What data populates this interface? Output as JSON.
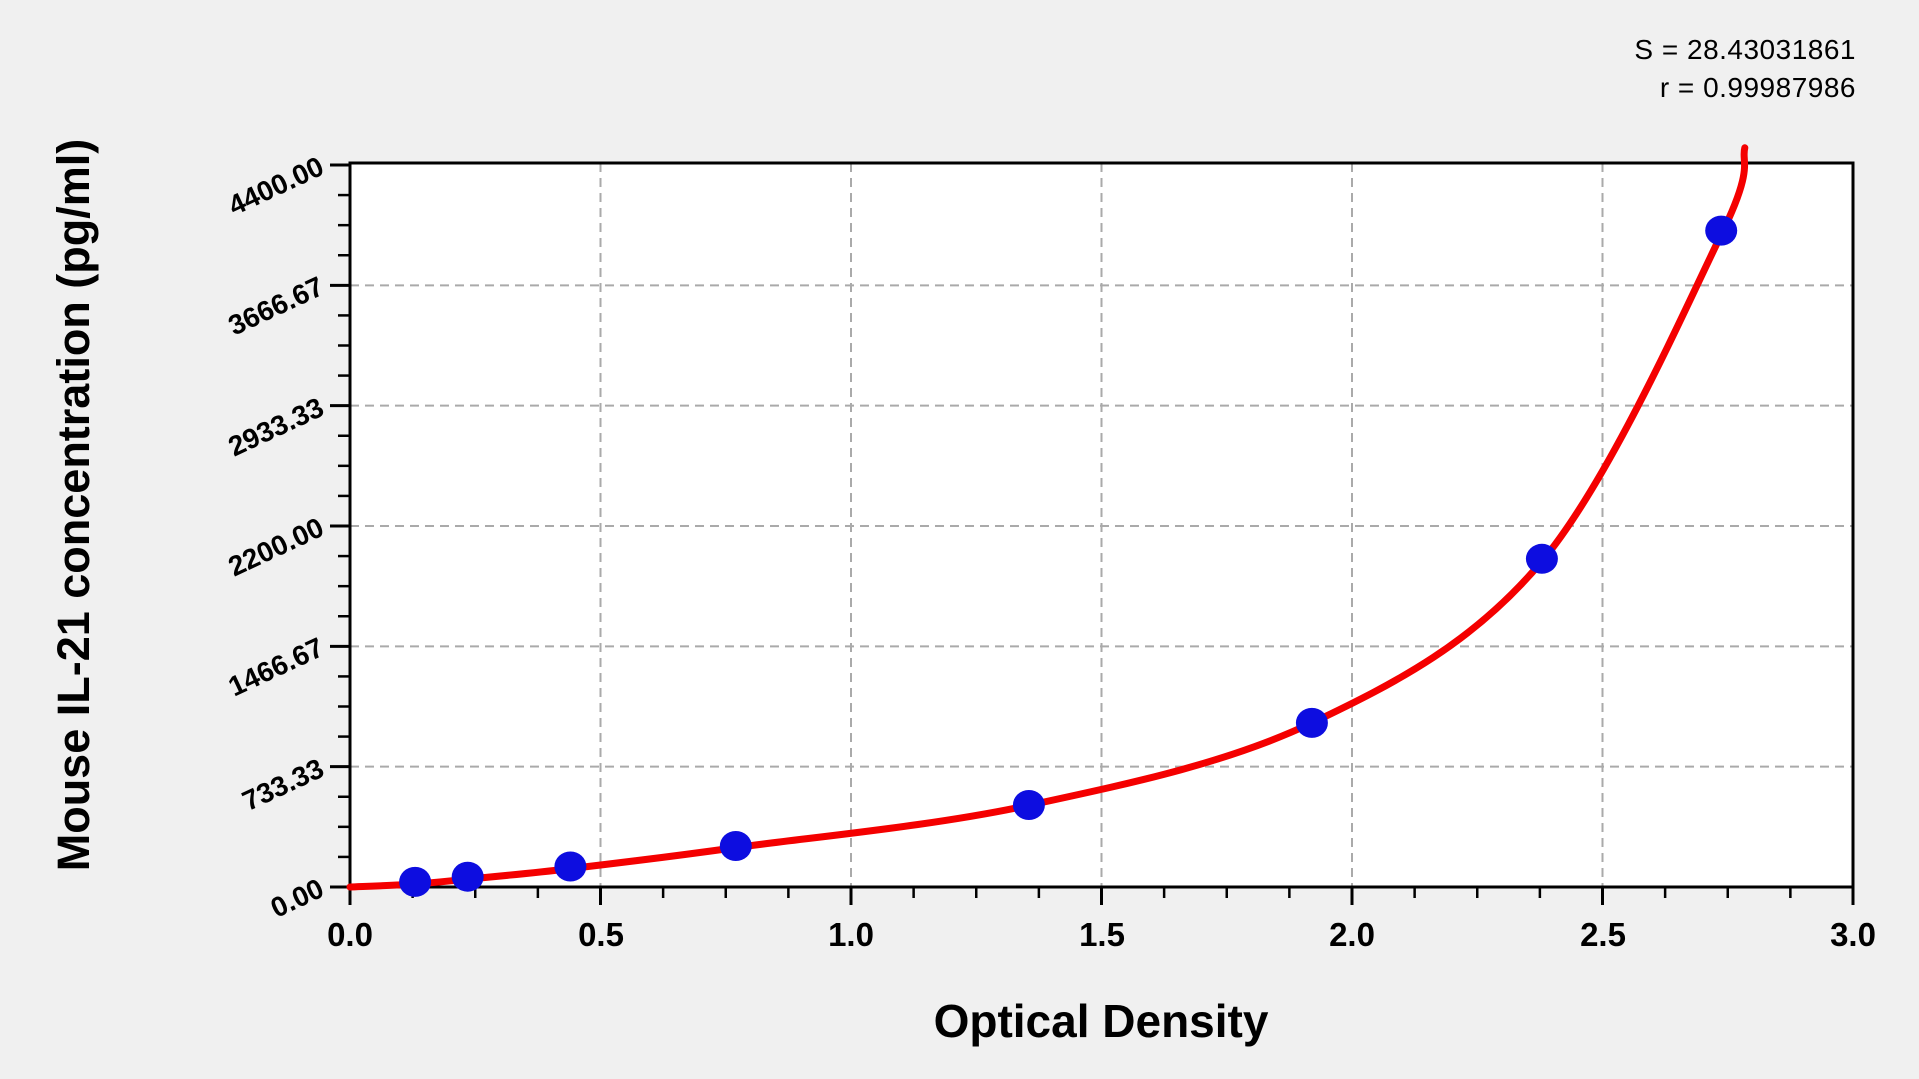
{
  "stats": {
    "s_line": "S = 28.43031861",
    "r_line": "r = 0.99987986"
  },
  "chart_data": {
    "type": "scatter",
    "title": "",
    "xlabel": "Optical Density",
    "ylabel": "Mouse IL-21 concentration (pg/ml)",
    "xlim": [
      0,
      3.0
    ],
    "ylim": [
      0,
      4400
    ],
    "grid": {
      "style": "dashed",
      "on_major_ticks": true
    },
    "legend_position": "none",
    "x_ticks": {
      "values": [
        0,
        0.5,
        1.0,
        1.5,
        2.0,
        2.5,
        3.0
      ],
      "labels": [
        "0.0",
        "0.5",
        "1.0",
        "1.5",
        "2.0",
        "2.5",
        "3.0"
      ],
      "minor_step": 0.125
    },
    "y_ticks": {
      "values": [
        0,
        733.33,
        1466.67,
        2200.0,
        2933.33,
        3666.67,
        4400.0
      ],
      "labels": [
        "0.00",
        "733.33",
        "1466.67",
        "2200.00",
        "2933.33",
        "3666.67",
        "4400.00"
      ],
      "minor_step": 183.3333
    },
    "points": {
      "x": [
        0.13,
        0.235,
        0.44,
        0.77,
        1.355,
        1.92,
        2.379,
        2.737
      ],
      "y": [
        31.25,
        62.5,
        125,
        250,
        500,
        1000,
        2000,
        4000
      ]
    },
    "fit": {
      "S": 28.43031861,
      "r": 0.99987986,
      "curve_anchors": [
        [
          0,
          0
        ],
        [
          0.13,
          18
        ],
        [
          0.235,
          48
        ],
        [
          0.44,
          112
        ],
        [
          0.77,
          240
        ],
        [
          1.355,
          498
        ],
        [
          1.92,
          1000
        ],
        [
          2.379,
          1985
        ],
        [
          2.737,
          3975
        ],
        [
          2.784,
          4505
        ]
      ]
    }
  },
  "colors": {
    "background": "#f0f0f0",
    "plot_background": "#ffffff",
    "frame": "#000000",
    "grid": "#aaaaaa",
    "curve": "#f40000",
    "marker": "#0d0de0",
    "text": "#000000"
  }
}
